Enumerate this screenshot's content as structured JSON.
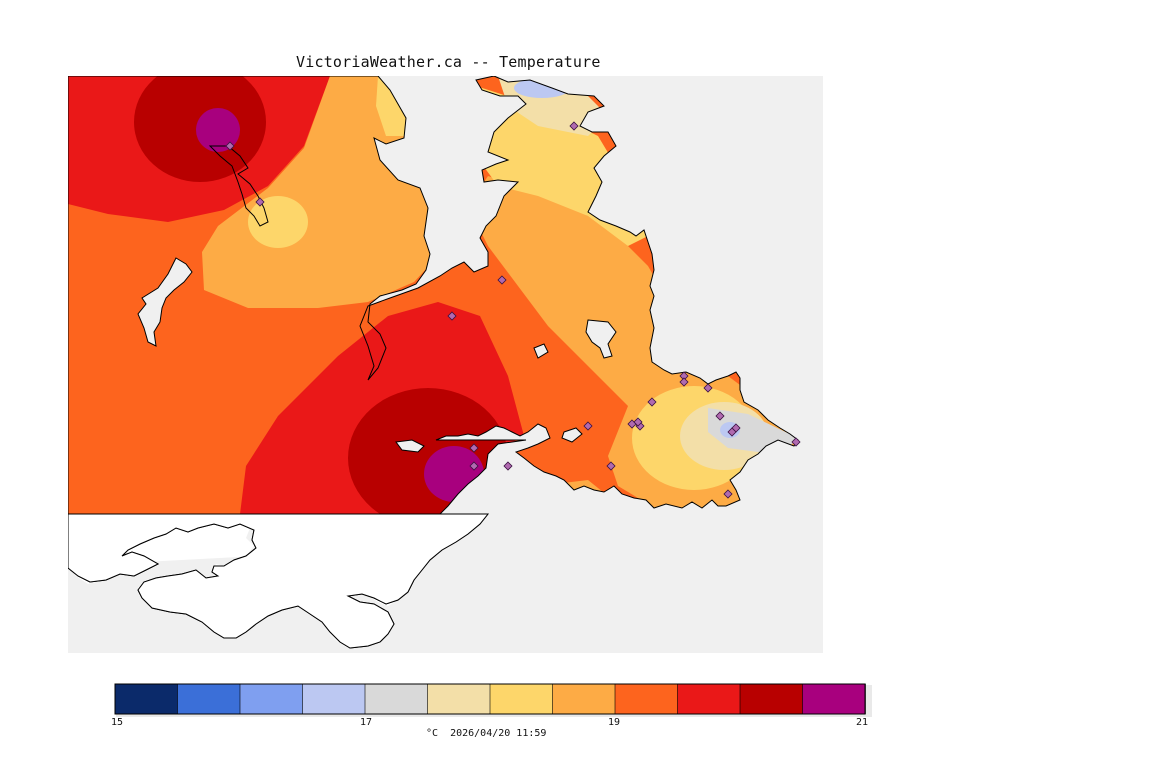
{
  "title": "VictoriaWeather.ca -- Temperature",
  "caption": "°C  2026/04/20 11:59",
  "colors": {
    "water": "#f0f0f0",
    "land_outside": "#ffffff",
    "coast": "#000000",
    "station_fill": "#b06ab0",
    "station_stroke": "#3a1040"
  },
  "legend": {
    "min": 15,
    "max": 21,
    "colors": [
      "#0b2a6a",
      "#3b6fd8",
      "#7f9ff0",
      "#bcc8f2",
      "#d9d9d9",
      "#f3dfa8",
      "#fdd66a",
      "#fdab45",
      "#fd641e",
      "#ea1818",
      "#b80000",
      "#a8007e"
    ],
    "tick_labels": [
      "15",
      "17",
      "19",
      "21"
    ]
  },
  "stations_count": 22
}
